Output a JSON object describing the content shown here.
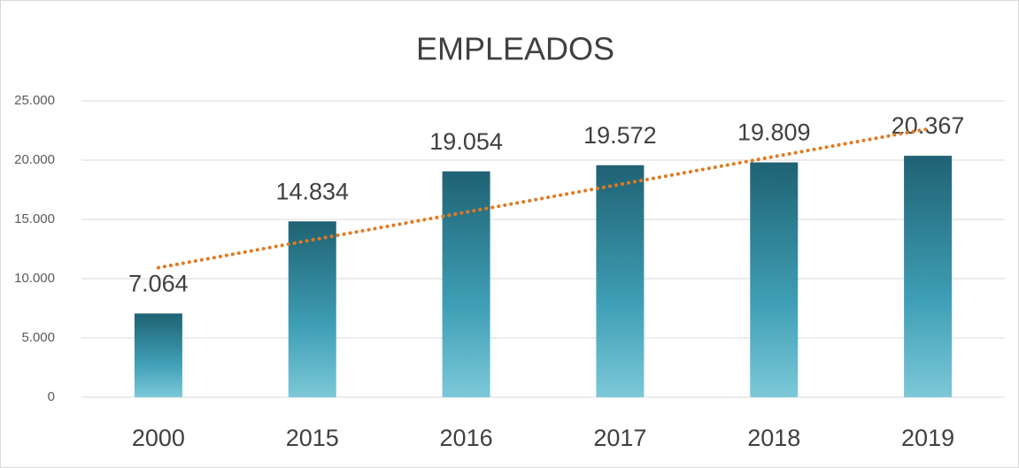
{
  "chart_data": {
    "type": "bar",
    "title": "EMPLEADOS",
    "categories": [
      "2000",
      "2015",
      "2016",
      "2017",
      "2018",
      "2019"
    ],
    "values": [
      7064,
      14834,
      19054,
      19572,
      19809,
      20367
    ],
    "value_labels": [
      "7.064",
      "14.834",
      "19.054",
      "19.572",
      "19.809",
      "20.367"
    ],
    "color": "#2f8296",
    "ylim": [
      0,
      25000
    ],
    "yticks": [
      0,
      {
        "value": 5000,
        "label": "5.000"
      },
      {
        "value": 10000,
        "label": "10.000"
      },
      {
        "value": 15000,
        "label": "15.000"
      },
      {
        "value": 20000,
        "label": "20.000"
      },
      {
        "value": 25000,
        "label": "25.000"
      }
    ],
    "grid": true,
    "trendline": {
      "type": "linear",
      "color": "#e07a22"
    }
  }
}
